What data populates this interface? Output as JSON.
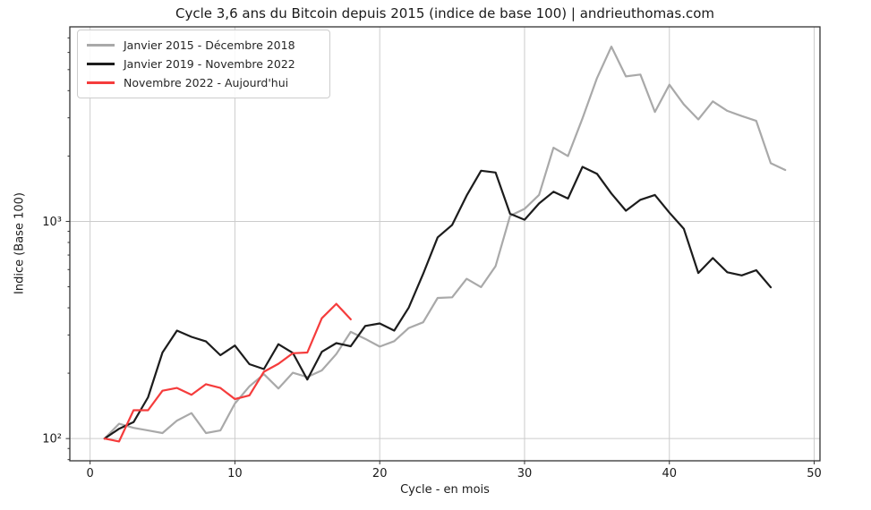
{
  "chart_data": {
    "type": "line",
    "title": "Cycle 3,6 ans du Bitcoin depuis 2015 (indice de base 100) | andrieuthomas.com",
    "xlabel": "Cycle - en mois",
    "ylabel": "Indice (Base 100)",
    "yscale": "log",
    "xlim": [
      -1.4,
      50.4
    ],
    "ylim": [
      79,
      7870
    ],
    "xticks": [
      0,
      10,
      20,
      30,
      40,
      50
    ],
    "xtick_labels": [
      "0",
      "10",
      "20",
      "30",
      "40",
      "50"
    ],
    "yticks": [
      100,
      1000
    ],
    "ytick_labels": [
      "10²",
      "10³"
    ],
    "grid": true,
    "legend_position": "upper-left",
    "axis_color": "#333333",
    "grid_color": "#cccccc",
    "series": [
      {
        "name": "Janvier 2015 - Décembre 2018",
        "color": "#a9a9a9",
        "x_start": 1,
        "values": [
          100,
          117,
          112,
          109,
          106,
          121,
          131,
          106,
          109,
          145,
          174,
          198,
          170,
          201,
          192,
          206,
          245,
          310,
          288,
          265,
          281,
          323,
          343,
          444,
          447,
          544,
          498,
          622,
          1060,
          1143,
          1325,
          2184,
          2000,
          2982,
          4571,
          6382,
          4654,
          4747,
          3194,
          4258,
          3456,
          2949,
          3571,
          3230,
          3055,
          2903,
          1853,
          1724
        ]
      },
      {
        "name": "Janvier 2019 - Novembre 2022",
        "color": "#1c1c1c",
        "x_start": 1,
        "values": [
          100,
          111,
          119,
          155,
          249,
          314,
          294,
          280,
          242,
          268,
          220,
          209,
          272,
          248,
          187,
          251,
          275,
          266,
          330,
          339,
          314,
          401,
          573,
          844,
          963,
          1315,
          1711,
          1679,
          1085,
          1018,
          1210,
          1370,
          1274,
          1783,
          1658,
          1344,
          1120,
          1257,
          1324,
          1097,
          925,
          579,
          678,
          583,
          564,
          596,
          497
        ]
      },
      {
        "name": "Novembre 2022 - Aujourd'hui",
        "color": "#f53c3c",
        "x_start": 1,
        "values": [
          100,
          97,
          135,
          135,
          166,
          171,
          159,
          178,
          171,
          152,
          158,
          203,
          221,
          247,
          249,
          358,
          417,
          354
        ]
      }
    ]
  }
}
